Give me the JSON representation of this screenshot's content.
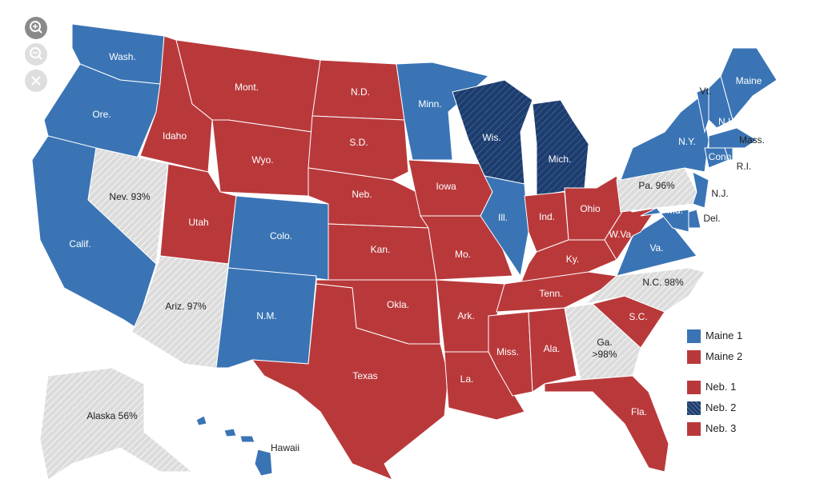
{
  "status_colors": {
    "dem": "#3a74b5",
    "rep": "#b9393b",
    "dem_flip": "#1d3d6f",
    "pending": "#dcdcdc"
  },
  "hatched": [
    "dem_flip",
    "pending"
  ],
  "states": [
    {
      "label": "Wash.",
      "status": "dem"
    },
    {
      "label": "Ore.",
      "status": "dem"
    },
    {
      "label": "Calif.",
      "status": "dem"
    },
    {
      "label": "Nev. 93%",
      "status": "pending"
    },
    {
      "label": "Idaho",
      "status": "rep"
    },
    {
      "label": "Mont.",
      "status": "rep"
    },
    {
      "label": "Wyo.",
      "status": "rep"
    },
    {
      "label": "Utah",
      "status": "rep"
    },
    {
      "label": "Ariz. 97%",
      "status": "pending"
    },
    {
      "label": "Colo.",
      "status": "dem"
    },
    {
      "label": "N.M.",
      "status": "dem"
    },
    {
      "label": "N.D.",
      "status": "rep"
    },
    {
      "label": "S.D.",
      "status": "rep"
    },
    {
      "label": "Neb.",
      "status": "rep"
    },
    {
      "label": "Kan.",
      "status": "rep"
    },
    {
      "label": "Okla.",
      "status": "rep"
    },
    {
      "label": "Texas",
      "status": "rep"
    },
    {
      "label": "Minn.",
      "status": "dem"
    },
    {
      "label": "Iowa",
      "status": "rep"
    },
    {
      "label": "Mo.",
      "status": "rep"
    },
    {
      "label": "Ark.",
      "status": "rep"
    },
    {
      "label": "La.",
      "status": "rep"
    },
    {
      "label": "Wis.",
      "status": "dem_flip"
    },
    {
      "label": "Ill.",
      "status": "dem"
    },
    {
      "label": "Mich.",
      "status": "dem_flip"
    },
    {
      "label": "Ind.",
      "status": "rep"
    },
    {
      "label": "Ohio",
      "status": "rep"
    },
    {
      "label": "Ky.",
      "status": "rep"
    },
    {
      "label": "Tenn.",
      "status": "rep"
    },
    {
      "label": "Miss.",
      "status": "rep"
    },
    {
      "label": "Ala.",
      "status": "rep"
    },
    {
      "label": "Ga. >98%",
      "status": "pending"
    },
    {
      "label": "Fla.",
      "status": "rep"
    },
    {
      "label": "S.C.",
      "status": "rep"
    },
    {
      "label": "N.C. 98%",
      "status": "pending"
    },
    {
      "label": "Va.",
      "status": "dem"
    },
    {
      "label": "W.Va.",
      "status": "rep"
    },
    {
      "label": "Pa. 96%",
      "status": "pending"
    },
    {
      "label": "N.Y.",
      "status": "dem"
    },
    {
      "label": "Vt.",
      "status": "dem"
    },
    {
      "label": "N.H.",
      "status": "dem"
    },
    {
      "label": "Maine",
      "status": "dem"
    },
    {
      "label": "Mass.",
      "status": "dem"
    },
    {
      "label": "Conn",
      "status": "dem"
    },
    {
      "label": "R.I.",
      "status": "dem"
    },
    {
      "label": "N.J.",
      "status": "dem"
    },
    {
      "label": "Del.",
      "status": "dem"
    },
    {
      "label": "Md.",
      "status": "dem"
    },
    {
      "label": "Alaska 56%",
      "status": "pending"
    },
    {
      "label": "Hawaii",
      "status": "dem"
    }
  ],
  "legend": [
    {
      "label": "Maine 1",
      "status": "dem"
    },
    {
      "label": "Maine 2",
      "status": "rep"
    },
    {
      "label": "Neb. 1",
      "status": "rep"
    },
    {
      "label": "Neb. 2",
      "status": "dem_flip"
    },
    {
      "label": "Neb. 3",
      "status": "rep"
    }
  ]
}
